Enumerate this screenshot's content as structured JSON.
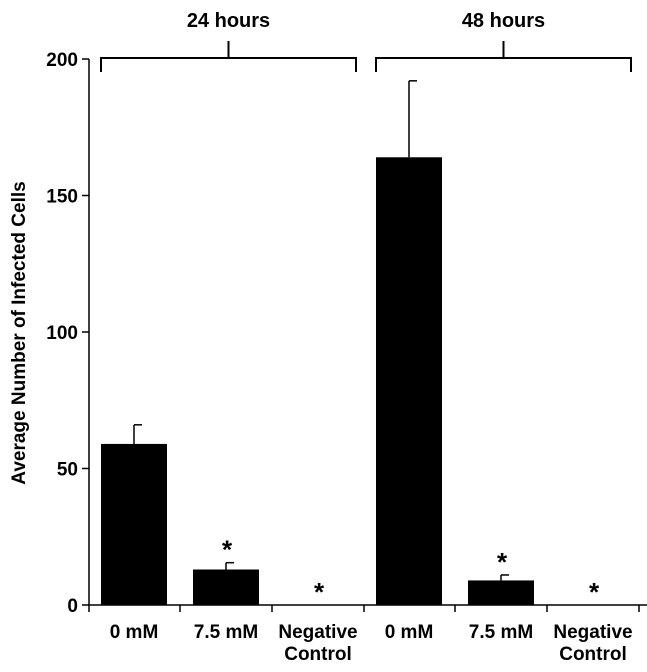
{
  "chart_data": {
    "type": "bar",
    "title": "",
    "xlabel": "",
    "ylabel": "Average Number of Infected Cells",
    "ylim": [
      0,
      200
    ],
    "yticks": [
      0,
      50,
      100,
      150,
      200
    ],
    "grid": false,
    "legend": "none",
    "bar_color": "#000000",
    "groups": [
      {
        "label": "24 hours",
        "bars": [
          {
            "category": "0 mM",
            "category_lines": [
              "0 mM"
            ],
            "value": 59,
            "error": 7,
            "significant": false
          },
          {
            "category": "7.5 mM",
            "category_lines": [
              "7.5 mM"
            ],
            "value": 13,
            "error": 2.5,
            "significant": true
          },
          {
            "category": "Negative Control",
            "category_lines": [
              "Negative",
              "Control"
            ],
            "value": 0,
            "error": 0,
            "significant": true
          }
        ]
      },
      {
        "label": "48 hours",
        "bars": [
          {
            "category": "0 mM",
            "category_lines": [
              "0 mM"
            ],
            "value": 164,
            "error": 28,
            "significant": false
          },
          {
            "category": "7.5 mM",
            "category_lines": [
              "7.5 mM"
            ],
            "value": 9,
            "error": 2,
            "significant": true
          },
          {
            "category": "Negative Control",
            "category_lines": [
              "Negative",
              "Control"
            ],
            "value": 0,
            "error": 0,
            "significant": true
          }
        ]
      }
    ],
    "significance_marker": "*"
  }
}
